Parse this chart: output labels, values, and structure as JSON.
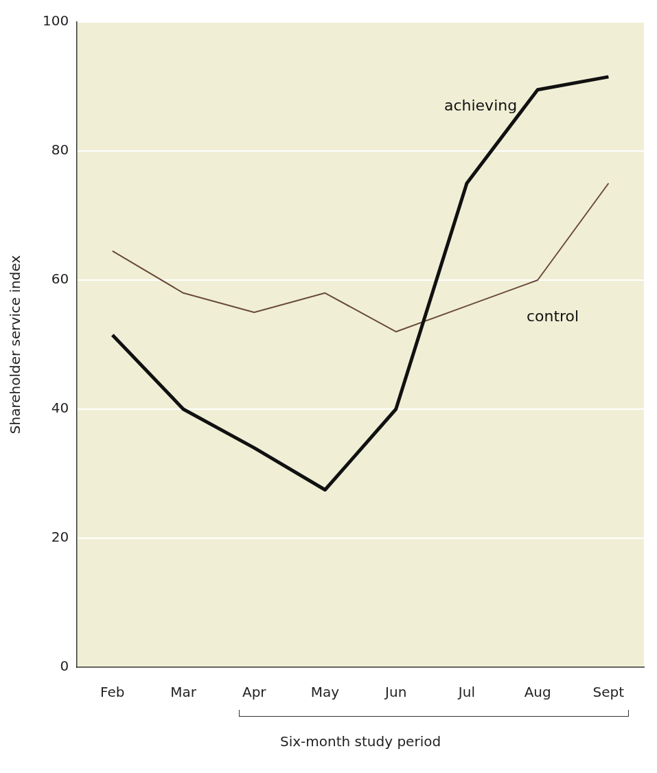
{
  "chart_data": {
    "type": "line",
    "xlabel": "Six-month study period",
    "ylabel": "Shareholder service index",
    "categories": [
      "Feb",
      "Mar",
      "Apr",
      "May",
      "Jun",
      "Jul",
      "Aug",
      "Sept"
    ],
    "series": [
      {
        "name": "achieving",
        "color": "#111111",
        "values": [
          51.5,
          40,
          34,
          27.5,
          40,
          75,
          89.5,
          91.5
        ]
      },
      {
        "name": "control",
        "color": "#6b4a3a",
        "values": [
          64.5,
          58,
          55,
          58,
          52,
          56,
          60,
          75
        ]
      }
    ],
    "ylim": [
      0,
      100
    ],
    "yticks": [
      0,
      20,
      40,
      60,
      80,
      100
    ],
    "grid": "y",
    "legend": false,
    "marker": "none",
    "line_style": "solid"
  }
}
